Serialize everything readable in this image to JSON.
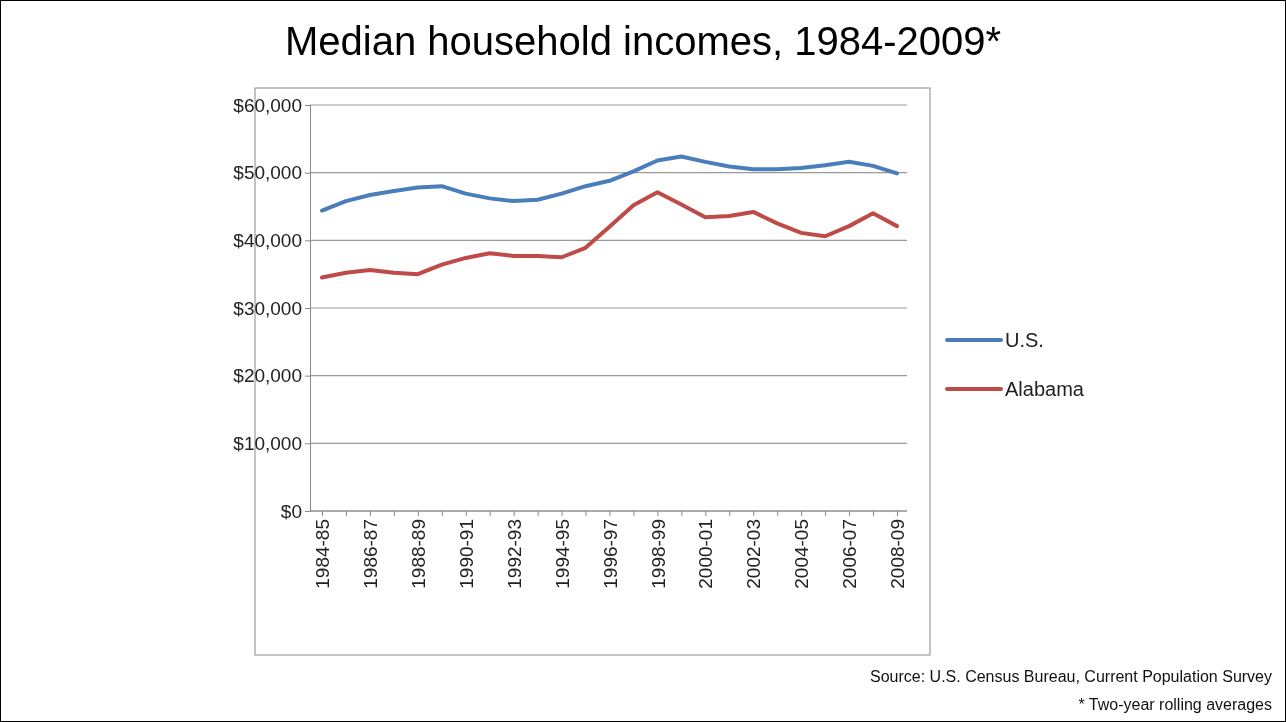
{
  "chart_data": {
    "type": "line",
    "title": "Median household incomes, 1984-2009*",
    "categories": [
      "1984-85",
      null,
      "1986-87",
      null,
      "1988-89",
      null,
      "1990-91",
      null,
      "1992-93",
      null,
      "1994-95",
      null,
      "1996-97",
      null,
      "1998-99",
      null,
      "2000-01",
      null,
      "2002-03",
      null,
      "2004-05",
      null,
      "2006-07",
      null,
      "2008-09"
    ],
    "series": [
      {
        "name": "U.S.",
        "color": "#4a7ebb",
        "values": [
          44400,
          45800,
          46700,
          47300,
          47800,
          48000,
          46900,
          46200,
          45800,
          46000,
          46900,
          48000,
          48800,
          50200,
          51800,
          52400,
          51600,
          50900,
          50500,
          50500,
          50700,
          51100,
          51600,
          51000,
          49900
        ]
      },
      {
        "name": "Alabama",
        "color": "#be4b48",
        "values": [
          34500,
          35200,
          35600,
          35200,
          35000,
          36400,
          37400,
          38100,
          37700,
          37700,
          37500,
          38900,
          42000,
          45200,
          47100,
          45300,
          43400,
          43600,
          44200,
          42500,
          41100,
          40600,
          42100,
          44000,
          42100
        ]
      }
    ],
    "ylim": [
      0,
      60000
    ],
    "yticks": [
      {
        "value": 0,
        "label": "$0"
      },
      {
        "value": 10000,
        "label": "$10,000"
      },
      {
        "value": 20000,
        "label": "$20,000"
      },
      {
        "value": 30000,
        "label": "$30,000"
      },
      {
        "value": 40000,
        "label": "$40,000"
      },
      {
        "value": 50000,
        "label": "$50,000"
      },
      {
        "value": 60000,
        "label": "$60,000"
      }
    ],
    "grid": "y",
    "legend": "right",
    "marker": "none",
    "line_style": "solid",
    "annotations": [
      "Source: U.S. Census Bureau, Current Population Survey",
      "* Two-year rolling averages"
    ]
  }
}
